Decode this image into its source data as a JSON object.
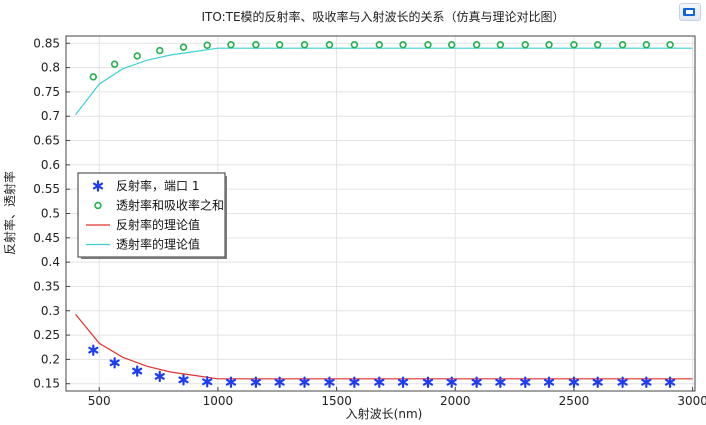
{
  "chart_data": {
    "type": "scatter",
    "title": "ITO:TE模的反射率、吸收率与入射波长的关系（仿真与理论对比图）",
    "xlabel": "入射波长(nm)",
    "ylabel": "反射率、透射率",
    "xlim": [
      360,
      3010
    ],
    "ylim": [
      0.135,
      0.865
    ],
    "xticks": [
      500,
      1000,
      1500,
      2000,
      2500,
      3000
    ],
    "yticks": [
      0.15,
      0.2,
      0.25,
      0.3,
      0.35,
      0.4,
      0.45,
      0.5,
      0.55,
      0.6,
      0.65,
      0.7,
      0.75,
      0.8,
      0.85
    ],
    "grid": true,
    "legend_position": "left-middle",
    "series": [
      {
        "name": "反射率，端口 1",
        "kind": "scatter",
        "marker": "star",
        "color": "#1f3df0",
        "x": [
          475,
          565,
          660,
          755,
          855,
          955,
          1055,
          1160,
          1260,
          1365,
          1470,
          1575,
          1680,
          1780,
          1885,
          1985,
          2090,
          2190,
          2295,
          2395,
          2500,
          2600,
          2705,
          2805,
          2905
        ],
        "y": [
          0.219,
          0.193,
          0.176,
          0.165,
          0.158,
          0.154,
          0.153,
          0.153,
          0.153,
          0.153,
          0.153,
          0.153,
          0.153,
          0.153,
          0.153,
          0.153,
          0.153,
          0.153,
          0.153,
          0.153,
          0.153,
          0.153,
          0.153,
          0.153,
          0.153
        ]
      },
      {
        "name": "透射率和吸收率之和",
        "kind": "scatter",
        "marker": "circle",
        "color": "#22b14c",
        "x": [
          475,
          565,
          660,
          755,
          855,
          955,
          1055,
          1160,
          1260,
          1365,
          1470,
          1575,
          1680,
          1780,
          1885,
          1985,
          2090,
          2190,
          2295,
          2395,
          2500,
          2600,
          2705,
          2805,
          2905
        ],
        "y": [
          0.781,
          0.807,
          0.824,
          0.835,
          0.842,
          0.846,
          0.847,
          0.847,
          0.847,
          0.847,
          0.847,
          0.847,
          0.847,
          0.847,
          0.847,
          0.847,
          0.847,
          0.847,
          0.847,
          0.847,
          0.847,
          0.847,
          0.847,
          0.847,
          0.847
        ]
      },
      {
        "name": "反射率的理论值",
        "kind": "line",
        "color": "#e03030",
        "x": [
          400,
          500,
          600,
          700,
          800,
          900,
          1000,
          1100,
          1200,
          1300,
          1400,
          1500,
          1600,
          1700,
          1800,
          1900,
          2000,
          2100,
          2200,
          2300,
          2400,
          2500,
          2600,
          2700,
          2800,
          2900,
          3000
        ],
        "y": [
          0.293,
          0.233,
          0.204,
          0.186,
          0.174,
          0.167,
          0.16,
          0.16,
          0.16,
          0.16,
          0.16,
          0.16,
          0.16,
          0.16,
          0.16,
          0.16,
          0.16,
          0.16,
          0.16,
          0.16,
          0.16,
          0.16,
          0.16,
          0.16,
          0.16,
          0.16,
          0.16
        ]
      },
      {
        "name": "透射率的理论值",
        "kind": "line",
        "color": "#3fd0d8",
        "x": [
          400,
          500,
          600,
          700,
          800,
          900,
          1000,
          1100,
          1200,
          1300,
          1400,
          1500,
          1600,
          1700,
          1800,
          1900,
          2000,
          2100,
          2200,
          2300,
          2400,
          2500,
          2600,
          2700,
          2800,
          2900,
          3000
        ],
        "y": [
          0.703,
          0.766,
          0.798,
          0.815,
          0.826,
          0.833,
          0.84,
          0.84,
          0.84,
          0.84,
          0.84,
          0.84,
          0.84,
          0.84,
          0.84,
          0.84,
          0.84,
          0.84,
          0.84,
          0.84,
          0.84,
          0.84,
          0.84,
          0.84,
          0.84,
          0.84,
          0.84
        ]
      }
    ]
  }
}
